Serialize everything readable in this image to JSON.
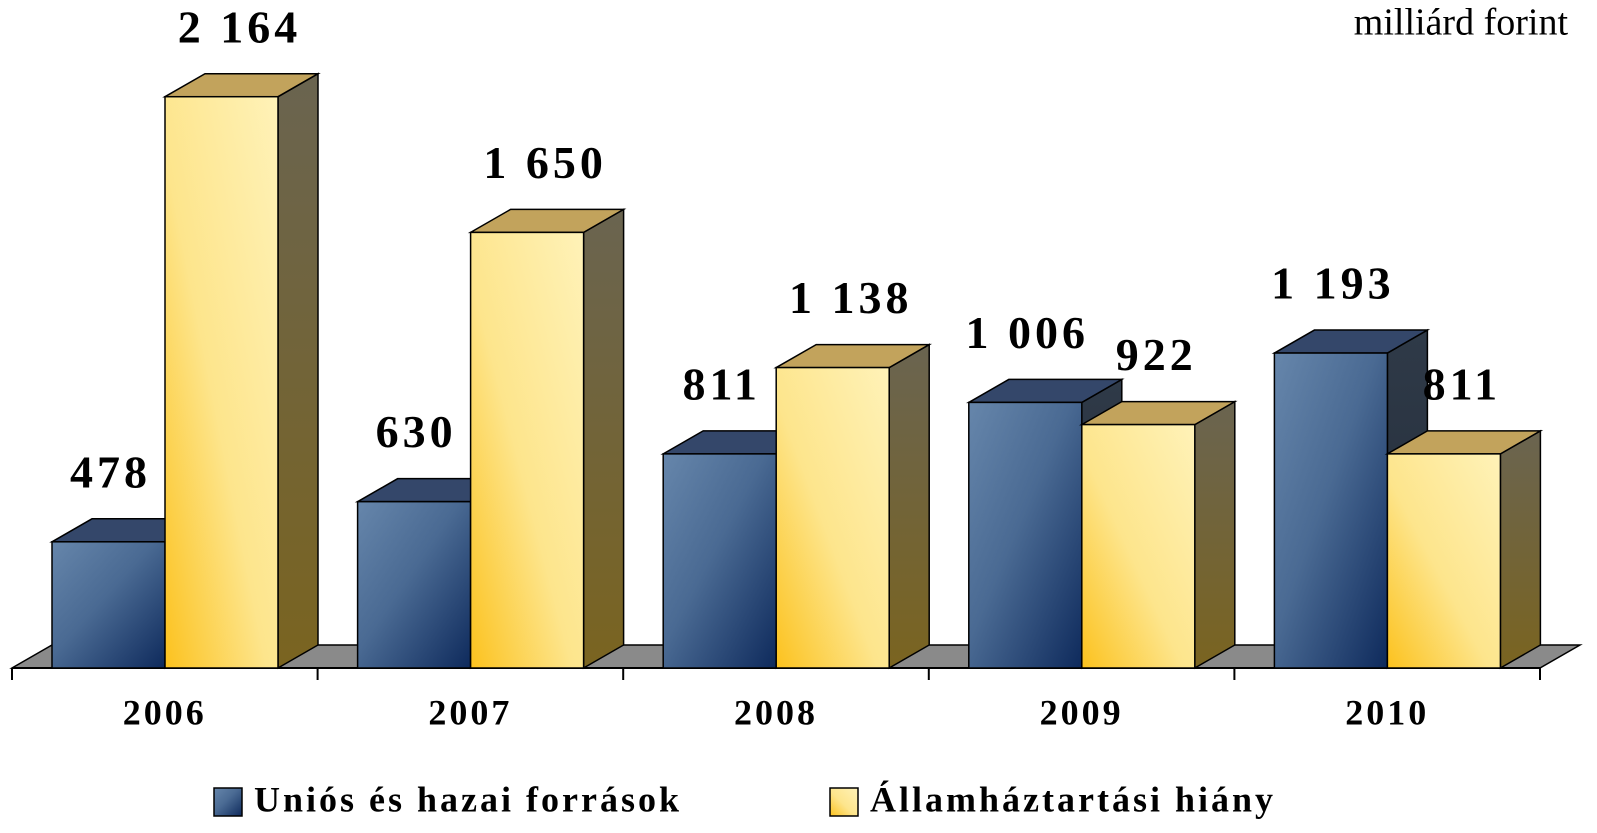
{
  "chart_data": {
    "type": "bar3d",
    "unit_label": "milliárd forint",
    "categories": [
      "2006",
      "2007",
      "2008",
      "2009",
      "2010"
    ],
    "ylim": [
      0,
      2500
    ],
    "series": [
      {
        "name": "Uniós és hazai források",
        "color": "#4a6a93",
        "values": [
          478,
          630,
          811,
          1006,
          1193
        ],
        "value_labels": [
          "478",
          "630",
          "811",
          "1 006",
          "1 193"
        ]
      },
      {
        "name": "Államháztartási hiány",
        "color": "#fde58c",
        "values": [
          2164,
          1650,
          1138,
          922,
          811
        ],
        "value_labels": [
          "2 164",
          "1 650",
          "1 138",
          "922",
          "811"
        ]
      }
    ]
  }
}
